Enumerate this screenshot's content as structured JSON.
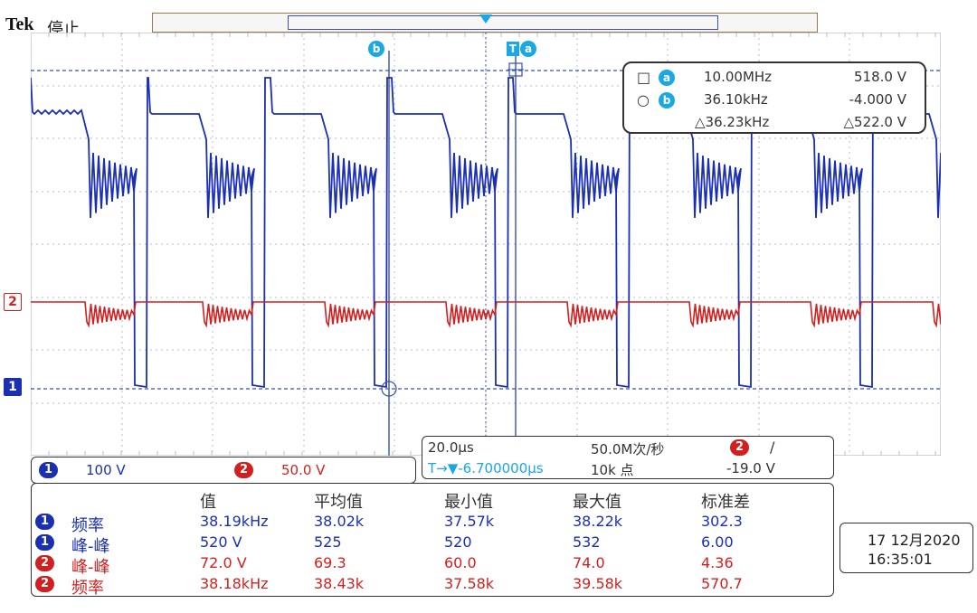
{
  "header": {
    "brand": "Tek",
    "status": "停止"
  },
  "markers": {
    "ch1_ref": "1",
    "ch2_ref": "2",
    "cursor_a": "a",
    "cursor_b": "b",
    "cursor_t": "T"
  },
  "cursor_readout": {
    "rows": [
      {
        "symbol": "□",
        "badge": "a",
        "freq": "10.00MHz",
        "volt": "518.0 V"
      },
      {
        "symbol": "○",
        "badge": "b",
        "freq": "36.10kHz",
        "volt": "-4.000 V"
      },
      {
        "symbol": "",
        "badge": "",
        "freq": "△36.23kHz",
        "volt": "△522.0 V"
      }
    ]
  },
  "scale": {
    "ch1_label": "1",
    "ch1_value": "100 V",
    "ch2_label": "2",
    "ch2_value": "50.0 V"
  },
  "timebase": {
    "time_div": "20.0μs",
    "sample_rate": "50.0M次/秒",
    "trigger_ch": "2",
    "trigger_slope": "/",
    "position": "T→▼-6.700000μs",
    "record": "10k 点",
    "trigger_level": "-19.0 V"
  },
  "measurements": {
    "headers": [
      "值",
      "平均值",
      "最小值",
      "最大值",
      "标准差"
    ],
    "rows": [
      {
        "ch": "1",
        "name": "频率",
        "color": "#1b2fb3",
        "cells": [
          "38.19kHz",
          "38.02k",
          "37.57k",
          "38.22k",
          "302.3"
        ]
      },
      {
        "ch": "1",
        "name": "峰-峰",
        "color": "#1b2fb3",
        "cells": [
          "520 V",
          "525",
          "520",
          "532",
          "6.00"
        ]
      },
      {
        "ch": "2",
        "name": "峰-峰",
        "color": "#d21f1f",
        "cells": [
          "72.0 V",
          "69.3",
          "60.0",
          "74.0",
          "4.36"
        ]
      },
      {
        "ch": "2",
        "name": "频率",
        "color": "#d21f1f",
        "cells": [
          "38.18kHz",
          "38.43k",
          "37.58k",
          "39.58k",
          "570.7"
        ]
      }
    ]
  },
  "datetime": {
    "date": "17 12月2020",
    "time": "16:35:01"
  },
  "colors": {
    "ch1": "#1b2fb3",
    "ch2": "#d21f1f",
    "grid": "#9ca7c8",
    "cursor": "#1aa7e6"
  }
}
